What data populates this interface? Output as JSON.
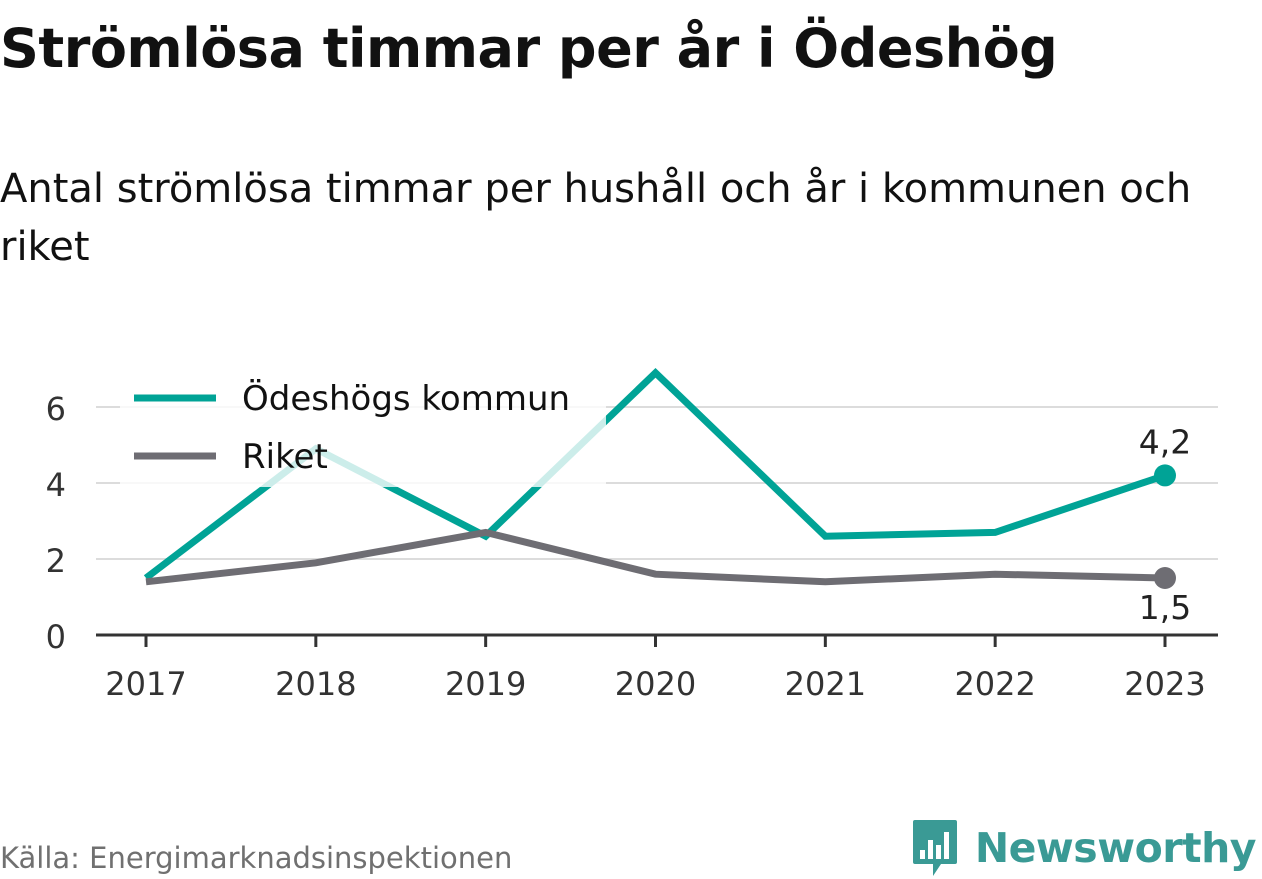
{
  "title": "Strömlösa timmar per år i Ödeshög",
  "subtitle": "Antal strömlösa timmar per hushåll och år i kommunen och riket",
  "source": "Källa: Energimarknadsinspektionen",
  "brand": {
    "name": "Newsworthy",
    "logo_icon": "newsworthy-bar-chart-icon",
    "color": "#3a9a95"
  },
  "chart_data": {
    "type": "line",
    "x": [
      "2017",
      "2018",
      "2019",
      "2020",
      "2021",
      "2022",
      "2023"
    ],
    "yticks": [
      "0",
      "2",
      "4",
      "6"
    ],
    "ylim": [
      0,
      7
    ],
    "grid": true,
    "legend_position": "top-left",
    "series": [
      {
        "name": "Ödeshögs kommun",
        "color": "#00a396",
        "values": [
          1.5,
          4.9,
          2.6,
          6.9,
          2.6,
          2.7,
          4.2
        ],
        "end_label": "4,2"
      },
      {
        "name": "Riket",
        "color": "#6e6d73",
        "values": [
          1.4,
          1.9,
          2.7,
          1.6,
          1.4,
          1.6,
          1.5
        ],
        "end_label": "1,5"
      }
    ]
  }
}
